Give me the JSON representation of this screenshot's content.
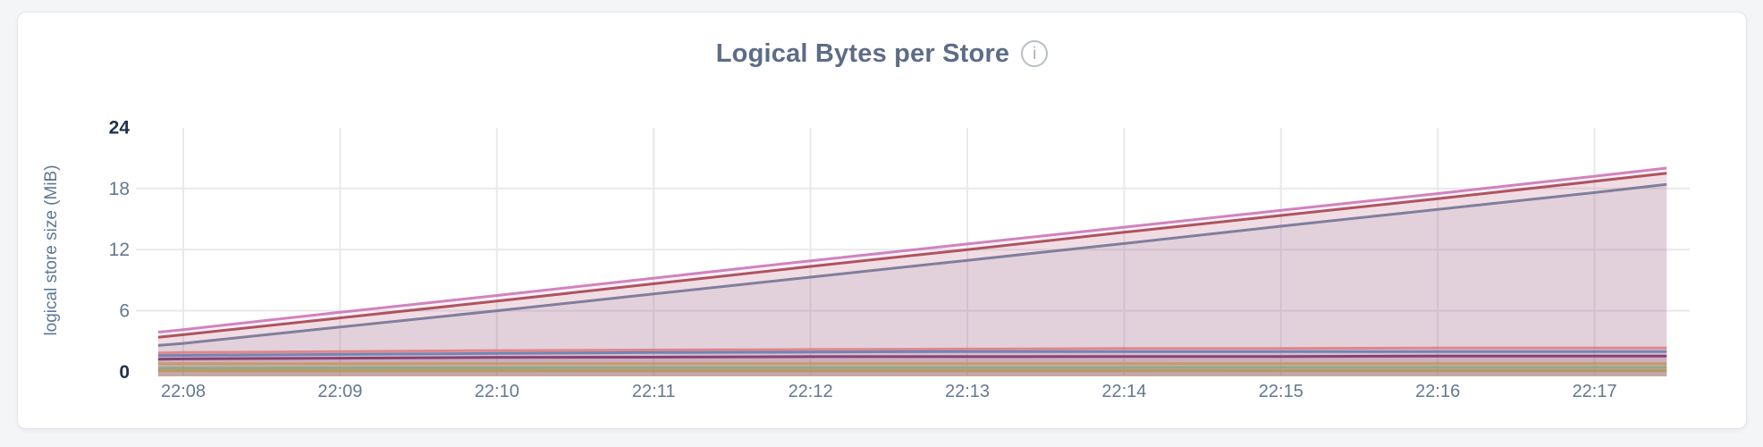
{
  "header": {
    "title": "Logical Bytes per Store",
    "info_glyph": "i"
  },
  "chart_data": {
    "type": "area",
    "title": "Logical Bytes per Store",
    "xlabel": "",
    "ylabel": "logical store size (MiB)",
    "unit": "MiB",
    "ylim": [
      0,
      24
    ],
    "grid": true,
    "legend": false,
    "y_ticks": [
      0,
      6,
      12,
      18,
      24
    ],
    "y_ticks_emphasized": [
      0,
      24
    ],
    "x_ticks": [
      "22:08",
      "22:09",
      "22:10",
      "22:11",
      "22:12",
      "22:13",
      "22:14",
      "22:15",
      "22:16",
      "22:17"
    ],
    "x_minutes": [
      -0.16,
      0,
      1,
      2,
      3,
      4,
      5,
      6,
      7,
      8,
      9,
      9.46
    ],
    "series": [
      {
        "color": "#c96fb3",
        "values": [
          3.9,
          4.15,
          5.85,
          7.5,
          9.2,
          10.9,
          12.55,
          14.2,
          15.85,
          17.5,
          19.2,
          20.0
        ]
      },
      {
        "color": "#a23947",
        "values": [
          3.4,
          3.65,
          5.3,
          6.95,
          8.65,
          10.35,
          12.0,
          13.7,
          15.35,
          17.0,
          18.7,
          19.5
        ]
      },
      {
        "color": "#6e6e90",
        "values": [
          2.6,
          2.8,
          4.4,
          6.0,
          7.65,
          9.3,
          10.95,
          12.6,
          14.3,
          15.95,
          17.6,
          18.4
        ]
      },
      {
        "color": "#e07a7c",
        "values": [
          1.85,
          1.9,
          2.0,
          2.1,
          2.15,
          2.2,
          2.25,
          2.3,
          2.3,
          2.35,
          2.35,
          2.35
        ]
      },
      {
        "color": "#5e7ab1",
        "values": [
          1.6,
          1.62,
          1.72,
          1.82,
          1.9,
          1.95,
          2.0,
          2.0,
          2.0,
          2.0,
          2.0,
          2.0
        ]
      },
      {
        "color": "#7d2d61",
        "values": [
          1.25,
          1.28,
          1.35,
          1.42,
          1.45,
          1.5,
          1.5,
          1.52,
          1.52,
          1.55,
          1.55,
          1.55
        ]
      },
      {
        "color": "#c49955",
        "values": [
          0.8,
          0.8,
          0.8,
          0.82,
          0.82,
          0.82,
          0.82,
          0.82,
          0.82,
          0.82,
          0.82,
          0.82
        ]
      },
      {
        "color": "#83a983",
        "values": [
          0.38,
          0.38,
          0.4,
          0.4,
          0.42,
          0.42,
          0.42,
          0.42,
          0.44,
          0.44,
          0.44,
          0.44
        ]
      },
      {
        "color": "#bd9355",
        "values": [
          0.12,
          0.12,
          0.12,
          0.12,
          0.12,
          0.12,
          0.12,
          0.12,
          0.12,
          0.12,
          0.12,
          0.12
        ]
      }
    ]
  }
}
